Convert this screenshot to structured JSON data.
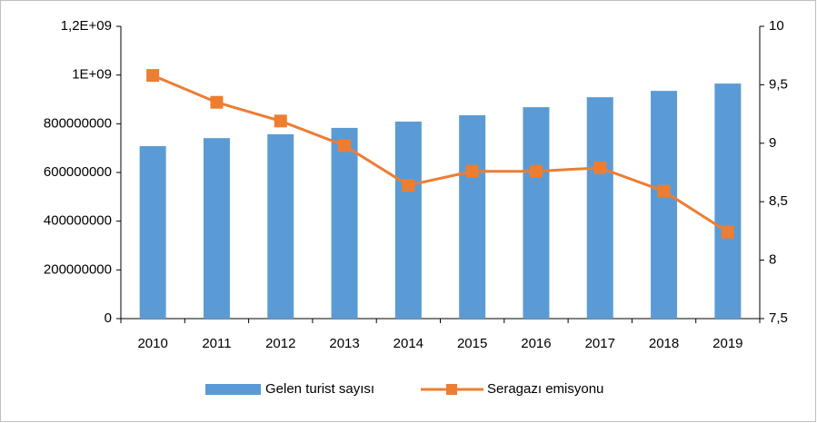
{
  "chart_data": {
    "type": "bar",
    "categories": [
      "2010",
      "2011",
      "2012",
      "2013",
      "2014",
      "2015",
      "2016",
      "2017",
      "2018",
      "2019"
    ],
    "series": [
      {
        "name": "Gelen turist sayısı",
        "type": "bar",
        "color": "#5b9bd5",
        "values": [
          708000000,
          741000000,
          757000000,
          783000000,
          809000000,
          835000000,
          868000000,
          909000000,
          935000000,
          965000000
        ]
      },
      {
        "name": "Seragazı emisyonu",
        "type": "line",
        "axis": "y2",
        "color": "#ed7d31",
        "values": [
          9.58,
          9.35,
          9.19,
          8.98,
          8.64,
          8.76,
          8.76,
          8.79,
          8.59,
          8.24
        ]
      }
    ],
    "ylim": [
      0,
      1200000000
    ],
    "yticks": [
      0,
      200000000,
      400000000,
      600000000,
      800000000,
      {
        "value": 1000000000,
        "label": "1E+09"
      },
      {
        "value": 1200000000,
        "label": "1,2E+09"
      }
    ],
    "y2lim": [
      7.5,
      10
    ],
    "y2ticks": [
      {
        "value": 7.5,
        "label": "7,5"
      },
      8,
      {
        "value": 8.5,
        "label": "8,5"
      },
      9,
      {
        "value": 9.5,
        "label": "9,5"
      },
      10
    ],
    "legend": "bottom"
  }
}
